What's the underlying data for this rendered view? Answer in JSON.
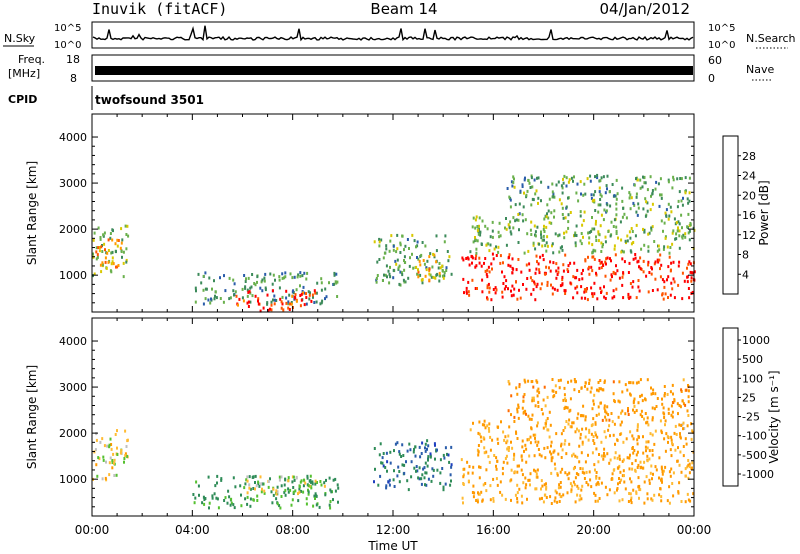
{
  "header": {
    "station": "Inuvik (fitACF)",
    "beam": "Beam 14",
    "date": "04/Jan/2012"
  },
  "top_panels": {
    "nsky_label": "N.Sky",
    "nsky_ticks": [
      "10^5",
      "10^0"
    ],
    "nsearch_label": "N.Search",
    "nsearch_ticks": [
      "10^5",
      "10^0"
    ],
    "freq_label_line1": "Freq.",
    "freq_label_line2": "[MHz]",
    "freq_ticks": [
      "18",
      "8"
    ],
    "nave_label": "Nave",
    "nave_ticks": [
      "60",
      "0"
    ],
    "cpid_label": "CPID",
    "cpid_value": "twofsound 3501"
  },
  "colors": {
    "power": [
      "#0000ff",
      "#2a5caa",
      "#3c8a5a",
      "#6ab04c",
      "#d8c800",
      "#ff9900",
      "#ff5500",
      "#ff0000"
    ],
    "velocity": [
      "#ff0000",
      "#ff6a00",
      "#ff9900",
      "#ffbb33",
      "#c0c0c0",
      "#c0c0c0",
      "#55c030",
      "#2e8b57",
      "#2a5caa",
      "#1f3fbf"
    ]
  },
  "chart_data": [
    {
      "type": "heatmap",
      "panel": "power",
      "ylabel": "Slant Range [km]",
      "yticks": [
        "1000",
        "2000",
        "3000",
        "4000"
      ],
      "ylim": [
        200,
        4500
      ],
      "xlim": [
        0,
        24
      ],
      "colorbar_label": "Power [dB]",
      "colorbar_ticks": [
        "4",
        "8",
        "12",
        "16",
        "20",
        "24",
        "28"
      ],
      "colorbar_range": [
        0,
        32
      ],
      "regions": [
        {
          "t0": 0.0,
          "t1": 1.4,
          "r0": 1000,
          "r1": 2100,
          "level": 14
        },
        {
          "t0": 0.1,
          "t1": 1.2,
          "r0": 1200,
          "r1": 1800,
          "level": 22
        },
        {
          "t0": 4.0,
          "t1": 9.8,
          "r0": 400,
          "r1": 1100,
          "level": 10
        },
        {
          "t0": 5.6,
          "t1": 9.0,
          "r0": 250,
          "r1": 700,
          "level": 28
        },
        {
          "t0": 11.2,
          "t1": 14.3,
          "r0": 800,
          "r1": 1900,
          "level": 12
        },
        {
          "t0": 12.8,
          "t1": 14.0,
          "r0": 900,
          "r1": 1500,
          "level": 20
        },
        {
          "t0": 14.7,
          "t1": 24.0,
          "r0": 500,
          "r1": 1500,
          "level": 30
        },
        {
          "t0": 15.0,
          "t1": 24.0,
          "r0": 1500,
          "r1": 2300,
          "level": 14
        },
        {
          "t0": 16.5,
          "t1": 23.8,
          "r0": 2300,
          "r1": 3200,
          "level": 12
        }
      ]
    },
    {
      "type": "heatmap",
      "panel": "velocity",
      "ylabel": "Slant Range [km]",
      "yticks": [
        "1000",
        "2000",
        "3000",
        "4000"
      ],
      "ylim": [
        200,
        4500
      ],
      "xlim": [
        0,
        24
      ],
      "xticks": [
        "00:00",
        "04:00",
        "08:00",
        "12:00",
        "16:00",
        "20:00",
        "00:00"
      ],
      "xlabel": "Time UT",
      "colorbar_label": "Velocity [m s⁻¹]",
      "colorbar_ticks": [
        "1000",
        "500",
        "100",
        "25",
        "-25",
        "-100",
        "-500",
        "-1000"
      ],
      "regions": [
        {
          "t0": 0.0,
          "t1": 1.4,
          "r0": 1000,
          "r1": 2100,
          "vel": -20
        },
        {
          "t0": 4.0,
          "t1": 9.8,
          "r0": 400,
          "r1": 1100,
          "vel": 150
        },
        {
          "t0": 6.0,
          "t1": 9.5,
          "r0": 700,
          "r1": 1100,
          "vel": 0
        },
        {
          "t0": 11.2,
          "t1": 14.3,
          "r0": 800,
          "r1": 1900,
          "vel": 600
        },
        {
          "t0": 14.7,
          "t1": 24.0,
          "r0": 500,
          "r1": 1500,
          "vel": -150
        },
        {
          "t0": 15.0,
          "t1": 24.0,
          "r0": 1500,
          "r1": 2300,
          "vel": -120
        },
        {
          "t0": 16.5,
          "t1": 23.8,
          "r0": 2300,
          "r1": 3200,
          "vel": -300
        }
      ]
    }
  ]
}
